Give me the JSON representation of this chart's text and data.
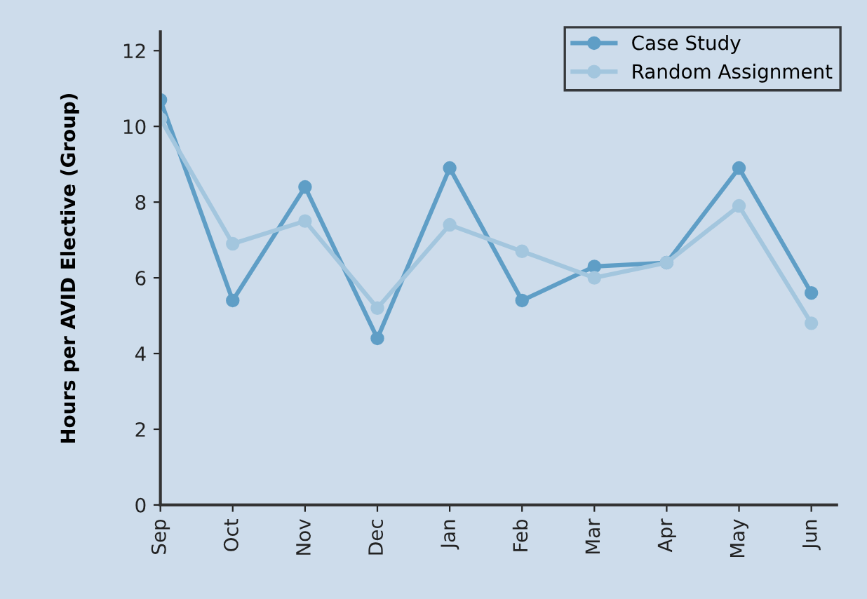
{
  "chart_data": {
    "type": "line",
    "ylabel": "Hours per AVID Elective (Group)",
    "categories": [
      "Sep",
      "Oct",
      "Nov",
      "Dec",
      "Jan",
      "Feb",
      "Mar",
      "Apr",
      "May",
      "Jun"
    ],
    "series": [
      {
        "name": "Case Study",
        "color": "#5f9ec6",
        "values": [
          10.7,
          5.4,
          8.4,
          4.4,
          8.9,
          5.4,
          6.3,
          6.4,
          8.9,
          5.6
        ]
      },
      {
        "name": "Random Assignment",
        "color": "#a3c6de",
        "values": [
          10.2,
          6.9,
          7.5,
          5.2,
          7.4,
          6.7,
          6.0,
          6.4,
          7.9,
          4.8
        ]
      }
    ],
    "ylim": [
      0,
      12.5
    ],
    "yticks": [
      0,
      2,
      4,
      6,
      8,
      10,
      12
    ],
    "marker": "circle",
    "line_style": "solid",
    "legend": "top right",
    "grid": false
  }
}
